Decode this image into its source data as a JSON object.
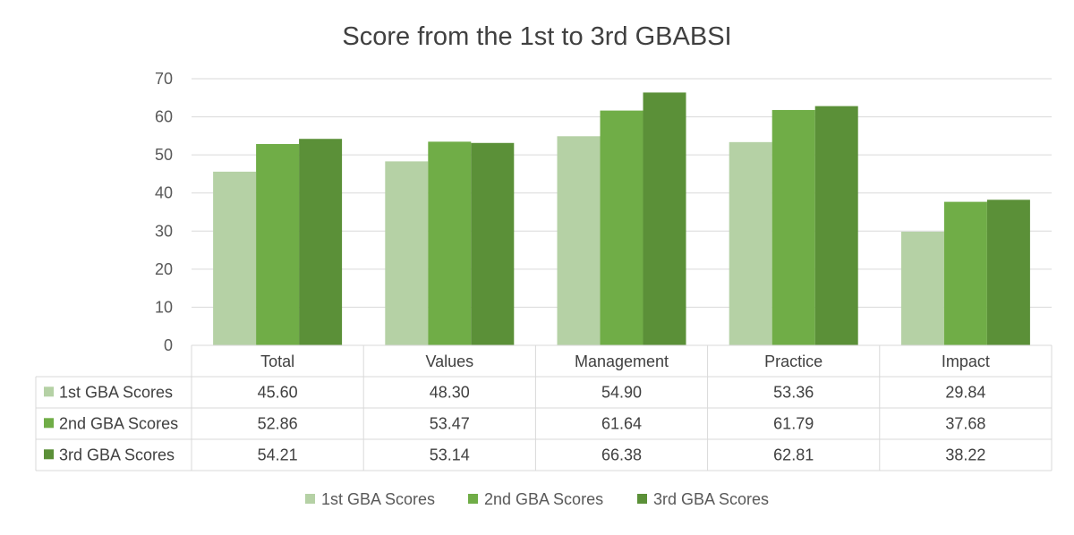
{
  "chart_data": {
    "type": "bar",
    "title": "Score from the 1st to 3rd GBABSI",
    "categories": [
      "Total",
      "Values",
      "Management",
      "Practice",
      "Impact"
    ],
    "series": [
      {
        "name": "1st GBA Scores",
        "values": [
          "45.60",
          "48.30",
          "54.90",
          "53.36",
          "29.84"
        ],
        "color": "#b5d1a5"
      },
      {
        "name": "2nd GBA Scores",
        "values": [
          "52.86",
          "53.47",
          "61.64",
          "61.79",
          "37.68"
        ],
        "color": "#70ad47"
      },
      {
        "name": "3rd GBA Scores",
        "values": [
          "54.21",
          "53.14",
          "66.38",
          "62.81",
          "38.22"
        ],
        "color": "#5b9038"
      }
    ],
    "ylim": [
      0,
      70
    ],
    "yticks": [
      "0",
      "10",
      "20",
      "30",
      "40",
      "50",
      "60",
      "70"
    ],
    "grid": true,
    "data_table": true,
    "legend_position": "bottom"
  }
}
